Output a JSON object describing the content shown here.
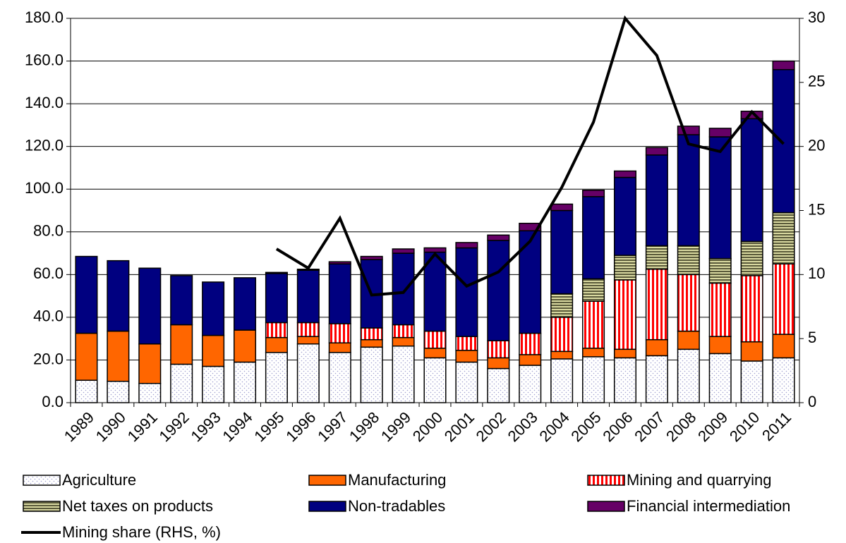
{
  "chart_data": {
    "type": "bar",
    "stacked": true,
    "categories": [
      "1989",
      "1990",
      "1991",
      "1992",
      "1993",
      "1994",
      "1995",
      "1996",
      "1997",
      "1998",
      "1999",
      "2000",
      "2001",
      "2002",
      "2003",
      "2004",
      "2005",
      "2006",
      "2007",
      "2008",
      "2009",
      "2010",
      "2011"
    ],
    "ylim": [
      0,
      180
    ],
    "yticks": [
      {
        "value": 0,
        "label": "0.0"
      },
      {
        "value": 20,
        "label": "20.0"
      },
      {
        "value": 40,
        "label": "40.0"
      },
      {
        "value": 60,
        "label": "60.0"
      },
      {
        "value": 80,
        "label": "80.0"
      },
      {
        "value": 100,
        "label": "100.0"
      },
      {
        "value": 120,
        "label": "120.0"
      },
      {
        "value": 140,
        "label": "140.0"
      },
      {
        "value": 160,
        "label": "160.0"
      },
      {
        "value": 180,
        "label": "180.0"
      }
    ],
    "y2lim": [
      0,
      30
    ],
    "y2ticks": [
      0,
      5,
      10,
      15,
      20,
      25,
      30
    ],
    "grid": true,
    "series": [
      {
        "name": "Agriculture",
        "color": "#a0a0d0",
        "pattern": "dots",
        "values": [
          10.5,
          10,
          9,
          18,
          17,
          19,
          23.5,
          27.5,
          23.5,
          26,
          26.5,
          21,
          19,
          16,
          17.5,
          20.5,
          21.5,
          21,
          22,
          25,
          23,
          19.5,
          21
        ]
      },
      {
        "name": "Manufacturing",
        "color": "#ff6600",
        "pattern": "solid",
        "values": [
          22,
          23.5,
          18.5,
          18.5,
          14.5,
          15,
          7,
          3.5,
          4.5,
          3.5,
          4,
          4.5,
          5.5,
          5,
          5,
          3.5,
          4,
          4,
          7.5,
          8.5,
          8,
          9,
          11
        ]
      },
      {
        "name": "Mining and quarrying",
        "color": "#ff0000",
        "pattern": "vstripes",
        "values": [
          null,
          null,
          null,
          null,
          null,
          null,
          7,
          6.5,
          9,
          5.5,
          6,
          8,
          6.5,
          8,
          10,
          16,
          22,
          32.5,
          33,
          26.5,
          25,
          31,
          33
        ]
      },
      {
        "name": "Net taxes on products",
        "color": "#5a5a3a",
        "pattern": "hstripes",
        "values": [
          null,
          null,
          null,
          null,
          null,
          null,
          null,
          null,
          null,
          null,
          null,
          null,
          null,
          null,
          null,
          11,
          10.5,
          11.5,
          11,
          13.5,
          11.5,
          16,
          24
        ]
      },
      {
        "name": "Non-tradables",
        "color": "#000080",
        "pattern": "solid",
        "values": [
          36,
          33,
          35.5,
          23,
          25,
          24.5,
          23,
          24.5,
          28,
          32,
          33.5,
          37,
          41.5,
          47,
          48,
          39,
          38.5,
          36.5,
          42.5,
          52,
          57,
          57.5,
          67
        ]
      },
      {
        "name": "Financial intermediation",
        "color": "#660066",
        "pattern": "solid",
        "values": [
          null,
          null,
          null,
          null,
          null,
          null,
          0.5,
          0.5,
          1,
          1.5,
          2,
          2,
          2.5,
          2.5,
          3.5,
          3,
          3,
          3,
          3.5,
          4,
          4,
          3.5,
          4
        ]
      },
      {
        "name": "Mining share (RHS, %)",
        "color": "#000000",
        "type": "line",
        "axis": "y2",
        "values": [
          null,
          null,
          null,
          null,
          null,
          null,
          12.0,
          10.5,
          14.4,
          8.4,
          8.6,
          11.6,
          9.1,
          10.2,
          12.6,
          16.8,
          21.9,
          30,
          27.1,
          20.2,
          19.6,
          22.7,
          20.2
        ]
      }
    ]
  }
}
